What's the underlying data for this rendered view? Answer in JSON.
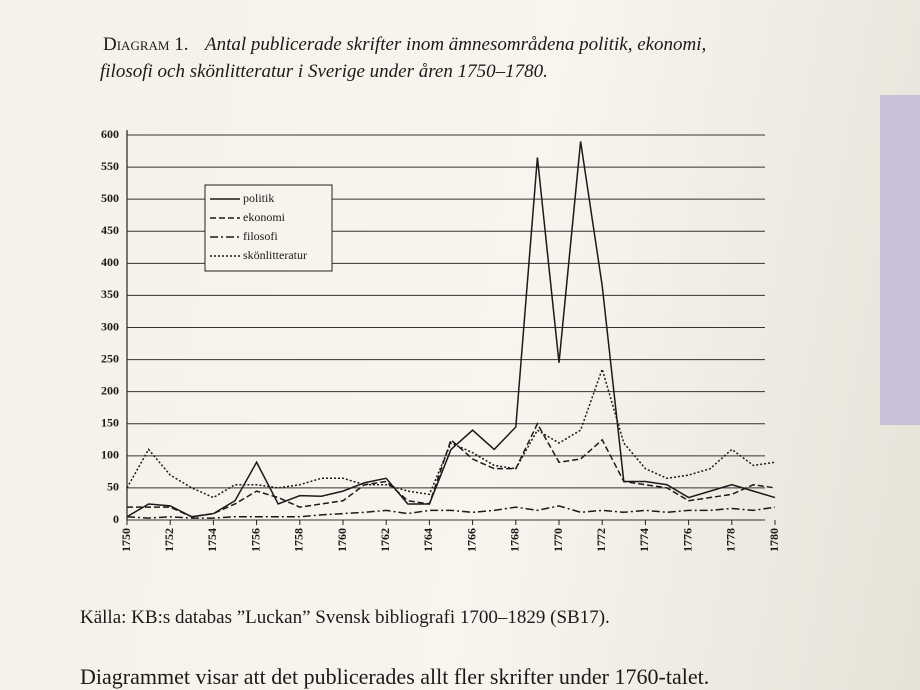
{
  "chart_data": {
    "type": "line",
    "figure_label": "Diagram 1.",
    "title": "Antal publicerade skrifter inom ämnesområdena politik, ekonomi, filosofi och skönlitteratur i Sverige under åren 1750–1780.",
    "x": [
      1750,
      1751,
      1752,
      1753,
      1754,
      1755,
      1756,
      1757,
      1758,
      1759,
      1760,
      1761,
      1762,
      1763,
      1764,
      1765,
      1766,
      1767,
      1768,
      1769,
      1770,
      1771,
      1772,
      1773,
      1774,
      1775,
      1776,
      1777,
      1778,
      1779,
      1780
    ],
    "xlim": [
      1750,
      1780
    ],
    "xticks": [
      1750,
      1752,
      1754,
      1756,
      1758,
      1760,
      1762,
      1764,
      1766,
      1768,
      1770,
      1772,
      1774,
      1776,
      1778,
      1780
    ],
    "ylim": [
      0,
      600
    ],
    "yticks": [
      0,
      50,
      100,
      150,
      200,
      250,
      300,
      350,
      400,
      450,
      500,
      550,
      600
    ],
    "grid": true,
    "legend": "upper-left",
    "series": [
      {
        "name": "politik",
        "color": "#1a1a1a",
        "dash": "solid",
        "values": [
          5,
          25,
          22,
          5,
          10,
          30,
          90,
          25,
          38,
          37,
          45,
          58,
          65,
          25,
          25,
          110,
          140,
          110,
          145,
          565,
          245,
          590,
          365,
          60,
          60,
          55,
          35,
          45,
          55,
          45,
          35
        ]
      },
      {
        "name": "ekonomi",
        "color": "#1a1a1a",
        "dash": "dashed",
        "values": [
          20,
          20,
          20,
          5,
          10,
          25,
          45,
          35,
          20,
          25,
          30,
          55,
          60,
          30,
          25,
          125,
          95,
          80,
          80,
          150,
          90,
          95,
          125,
          60,
          55,
          50,
          30,
          35,
          40,
          55,
          50
        ]
      },
      {
        "name": "filosofi",
        "color": "#1a1a1a",
        "dash": "dashdot",
        "values": [
          5,
          3,
          5,
          3,
          3,
          5,
          5,
          5,
          5,
          8,
          10,
          12,
          15,
          10,
          15,
          15,
          12,
          15,
          20,
          15,
          22,
          12,
          15,
          12,
          15,
          12,
          15,
          15,
          18,
          15,
          20
        ]
      },
      {
        "name": "skönlitteratur",
        "color": "#1a1a1a",
        "dash": "dotted",
        "values": [
          50,
          110,
          70,
          50,
          35,
          55,
          55,
          50,
          55,
          65,
          65,
          55,
          55,
          45,
          40,
          120,
          105,
          85,
          80,
          140,
          120,
          140,
          235,
          120,
          80,
          65,
          70,
          80,
          110,
          85,
          90
        ]
      }
    ],
    "source": "Källa: KB:s databas ”Luckan” Svensk bibliografi 1700–1829 (SB17).",
    "body_text": "Diagrammet visar att det publicerades allt fler skrifter under 1760-talet."
  }
}
